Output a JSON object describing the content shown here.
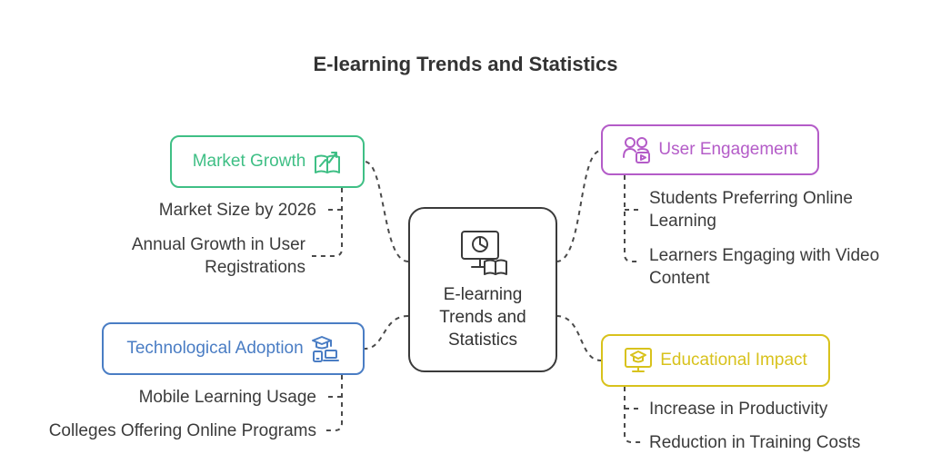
{
  "title": "E-learning Trends and Statistics",
  "center": {
    "lines": [
      "E-learning",
      "Trends and",
      "Statistics"
    ],
    "icon": "presentation-book-icon"
  },
  "branches": {
    "market_growth": {
      "label": "Market Growth",
      "color": "#3fbf85",
      "icon": "growth-book-icon",
      "items": [
        [
          "Market Size by 2026"
        ],
        [
          "Annual Growth in User",
          "Registrations"
        ]
      ]
    },
    "user_engagement": {
      "label": "User Engagement",
      "color": "#b45cc8",
      "icon": "users-video-icon",
      "items": [
        [
          "Students Preferring Online",
          "Learning"
        ],
        [
          "Learners Engaging with Video",
          "Content"
        ]
      ]
    },
    "technological_adoption": {
      "label": "Technological Adoption",
      "color": "#4a7dc4",
      "icon": "graduate-devices-icon",
      "items": [
        [
          "Mobile Learning Usage"
        ],
        [
          "Colleges Offering Online Programs"
        ]
      ]
    },
    "educational_impact": {
      "label": "Educational Impact",
      "color": "#d8c21c",
      "icon": "graduate-screen-icon",
      "items": [
        [
          "Increase in Productivity"
        ],
        [
          "Reduction in Training Costs"
        ]
      ]
    }
  }
}
